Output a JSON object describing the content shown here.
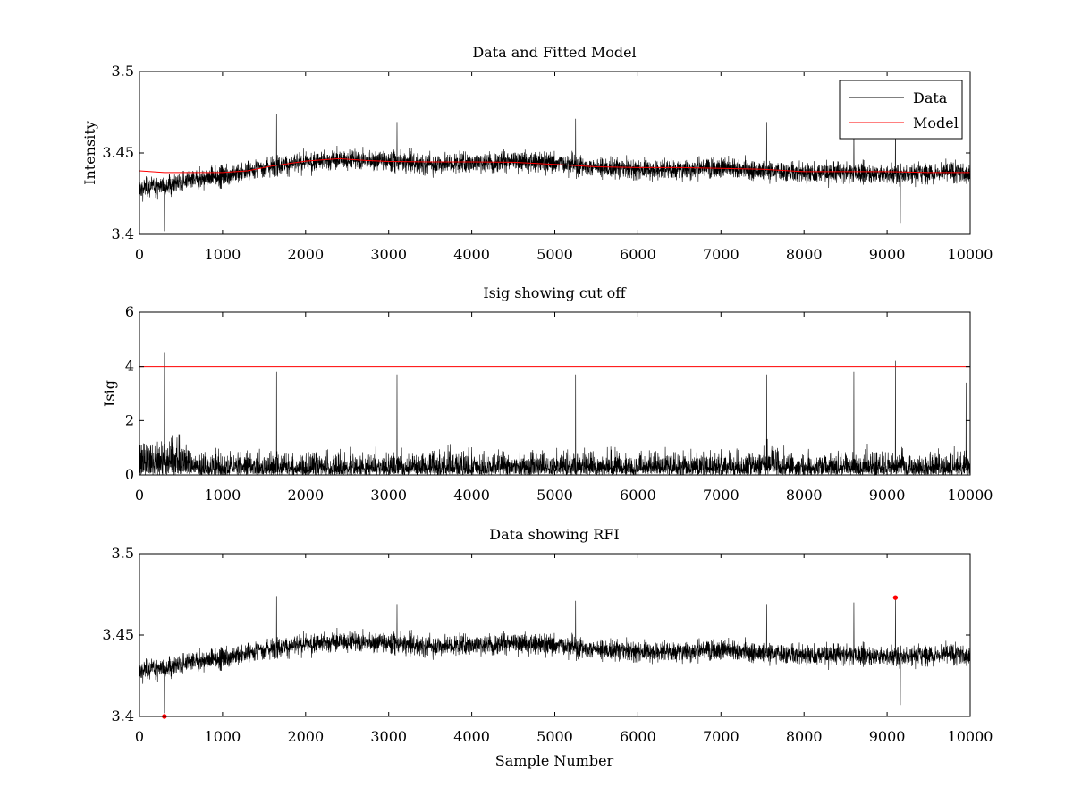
{
  "colors": {
    "data": "#000000",
    "model": "#ff0000",
    "cutoff": "#ff0000",
    "rfi": "#ff0000",
    "background": "#ffffff"
  },
  "chart_data": [
    {
      "type": "line",
      "title": "Data and Fitted Model",
      "xlabel": "",
      "ylabel": "Intensity",
      "xlim": [
        0,
        10000
      ],
      "ylim": [
        3.4,
        3.5
      ],
      "xticks": [
        0,
        1000,
        2000,
        3000,
        4000,
        5000,
        6000,
        7000,
        8000,
        9000,
        10000
      ],
      "yticks": [
        3.4,
        3.45,
        3.5
      ],
      "legend": {
        "position": "top-right",
        "entries": [
          "Data",
          "Model"
        ]
      },
      "series": [
        {
          "name": "Data",
          "color": "#000000",
          "kind": "noise",
          "n_points": 10000,
          "baseline_x": [
            0,
            300,
            600,
            1000,
            1300,
            1600,
            2000,
            2400,
            3000,
            3500,
            4000,
            4500,
            5000,
            5500,
            6000,
            6500,
            7000,
            7500,
            8000,
            8500,
            9000,
            9500,
            10000
          ],
          "baseline_y": [
            3.428,
            3.43,
            3.433,
            3.436,
            3.439,
            3.442,
            3.444,
            3.446,
            3.445,
            3.443,
            3.444,
            3.445,
            3.444,
            3.441,
            3.44,
            3.44,
            3.441,
            3.439,
            3.438,
            3.438,
            3.437,
            3.438,
            3.438
          ],
          "noise_amplitude": 0.006
        },
        {
          "name": "Model",
          "color": "#ff0000",
          "x": [
            0,
            300,
            600,
            1000,
            1300,
            1600,
            2000,
            2400,
            2700,
            3000,
            3500,
            4000,
            4500,
            5000,
            5500,
            6000,
            6500,
            7000,
            7500,
            8000,
            8500,
            9000,
            9500,
            10000
          ],
          "y": [
            3.439,
            3.438,
            3.438,
            3.438,
            3.439,
            3.442,
            3.445,
            3.4465,
            3.4455,
            3.4448,
            3.4445,
            3.4445,
            3.4443,
            3.443,
            3.4415,
            3.441,
            3.441,
            3.4405,
            3.44,
            3.4385,
            3.4385,
            3.4385,
            3.438,
            3.438
          ]
        }
      ]
    },
    {
      "type": "line",
      "title": "Isig showing cut off",
      "xlabel": "",
      "ylabel": "Isig",
      "xlim": [
        0,
        10000
      ],
      "ylim": [
        0,
        6
      ],
      "xticks": [
        0,
        1000,
        2000,
        3000,
        4000,
        5000,
        6000,
        7000,
        8000,
        9000,
        10000
      ],
      "yticks": [
        0,
        2,
        4,
        6
      ],
      "series": [
        {
          "name": "Isig",
          "color": "#000000",
          "kind": "abs-noise",
          "n_points": 10000,
          "typical_max": 2.0,
          "peaks": [
            {
              "x": 300,
              "y": 4.5
            },
            {
              "x": 1650,
              "y": 3.8
            },
            {
              "x": 3100,
              "y": 3.7
            },
            {
              "x": 5250,
              "y": 3.7
            },
            {
              "x": 7550,
              "y": 3.7
            },
            {
              "x": 8600,
              "y": 3.8
            },
            {
              "x": 9100,
              "y": 4.2
            },
            {
              "x": 9950,
              "y": 3.4
            }
          ]
        },
        {
          "name": "Cut off",
          "color": "#ff0000",
          "x": [
            0,
            10000
          ],
          "y": [
            4,
            4
          ]
        }
      ]
    },
    {
      "type": "line",
      "title": "Data showing RFI",
      "xlabel": "Sample Number",
      "ylabel": "",
      "xlim": [
        0,
        10000
      ],
      "ylim": [
        3.4,
        3.5
      ],
      "xticks": [
        0,
        1000,
        2000,
        3000,
        4000,
        5000,
        6000,
        7000,
        8000,
        9000,
        10000
      ],
      "yticks": [
        3.4,
        3.45,
        3.5
      ],
      "series": [
        {
          "name": "Data",
          "color": "#000000",
          "kind": "noise",
          "same_as": "Data (panel 1)"
        },
        {
          "name": "RFI",
          "color": "#ff0000",
          "kind": "markers",
          "x": [
            300,
            9100
          ],
          "y": [
            3.4,
            3.473
          ]
        }
      ]
    }
  ]
}
